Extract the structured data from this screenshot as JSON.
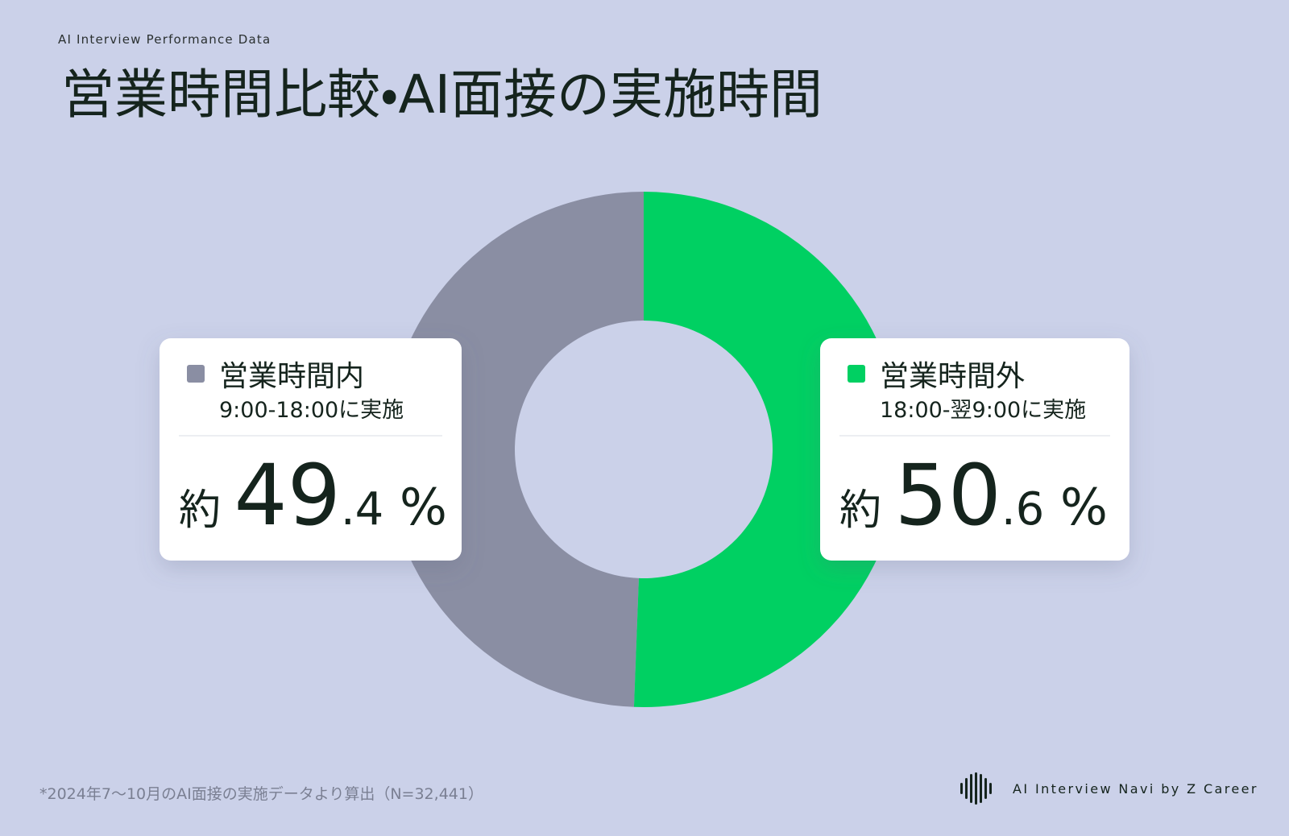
{
  "eyebrow": "AI Interview Performance Data",
  "footnote": "*2024年7〜10月のAI面接の実施データより算出（N=32,441）",
  "brand": "AI Interview Navi by Z Career",
  "chart_data": {
    "type": "donut",
    "title": "営業時間比較・AI面接の実施時間",
    "categories": [
      "営業時間内",
      "営業時間外"
    ],
    "descriptions": [
      "9:00-18:00に実施",
      "18:00-翌9:00に実施"
    ],
    "values": [
      49.4,
      50.6
    ],
    "value_labels": [
      "約 49.4 %",
      "約 50.6 %"
    ],
    "colors": [
      "#8a8ea3",
      "#00d062"
    ]
  }
}
